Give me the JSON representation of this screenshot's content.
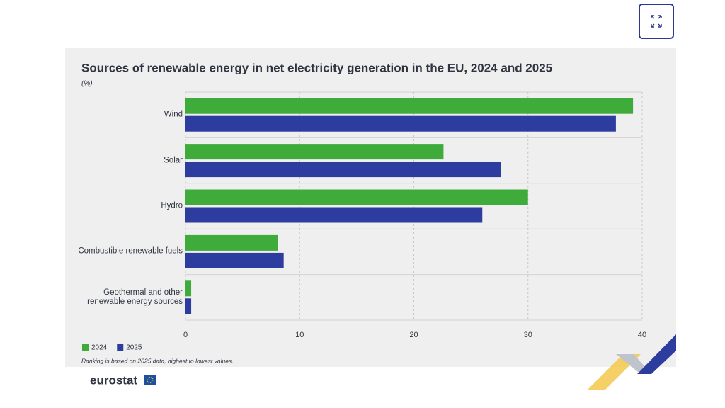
{
  "chart_data": {
    "type": "bar",
    "orientation": "horizontal",
    "title": "Sources of renewable energy in net electricity generation in the EU, 2024 and 2025",
    "subtitle": "(%)",
    "categories": [
      "Wind",
      "Solar",
      "Hydro",
      "Combustible renewable fuels",
      "Geothermal and other\nrenewable energy sources"
    ],
    "series": [
      {
        "name": "2024",
        "color": "#3eab3a",
        "values": [
          39.2,
          22.6,
          30.0,
          8.1,
          0.5
        ]
      },
      {
        "name": "2025",
        "color": "#2d3d9f",
        "values": [
          37.7,
          27.6,
          26.0,
          8.6,
          0.5
        ]
      }
    ],
    "xlim": [
      0,
      40
    ],
    "xticks": [
      0,
      10,
      20,
      30,
      40
    ],
    "grid": true,
    "legend": "bottom-left",
    "note": "Ranking is based on 2025 data, highest to lowest values.",
    "source": "eurostat"
  }
}
